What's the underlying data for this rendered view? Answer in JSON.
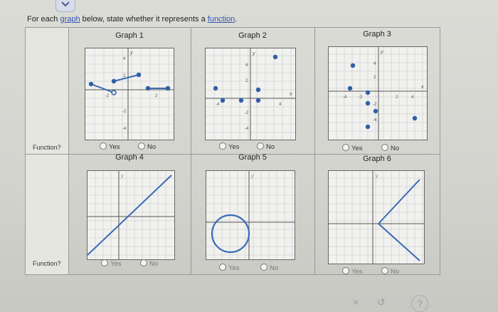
{
  "prompt": {
    "before": "For each ",
    "link1": "graph",
    "middle": " below, state whether it represents a ",
    "link2": "function",
    "after": "."
  },
  "graphs": [
    {
      "title": "Graph 1"
    },
    {
      "title": "Graph 2"
    },
    {
      "title": "Graph 3"
    },
    {
      "title": "Graph 4"
    },
    {
      "title": "Graph 5"
    },
    {
      "title": "Graph 6"
    }
  ],
  "row_labels": {
    "row1": "Function?",
    "row2": "Function?"
  },
  "options": {
    "yes": "Yes",
    "no": "No"
  },
  "axis_labels": {
    "x": "x",
    "y": "y"
  },
  "tick_labels": {
    "pos4": "4",
    "pos2": "2",
    "neg2": "-2",
    "neg4": "-4"
  },
  "footer": {
    "x_label": "×",
    "redo_label": "↺",
    "help_label": "?"
  },
  "colors": {
    "point": "#2f5fa8",
    "line": "#3a6bb5",
    "grid": "#c8c8d2",
    "accent": "#3355aa"
  }
}
